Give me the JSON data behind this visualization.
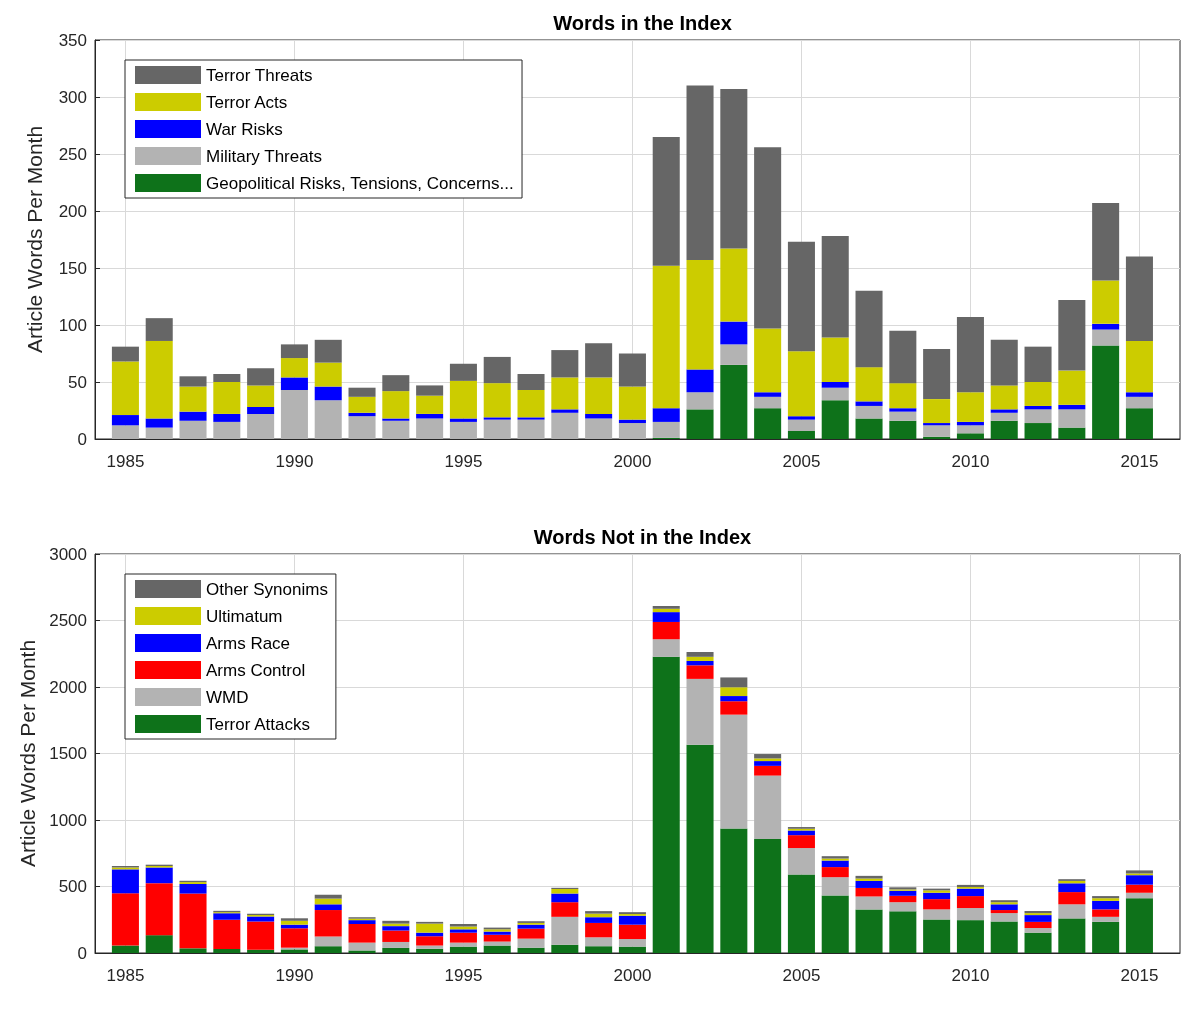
{
  "chart_data": [
    {
      "type": "bar",
      "title": "Words in the Index",
      "ylabel": "Article Words Per Month",
      "stacked": true,
      "grid": true,
      "legend": "top left",
      "x": [
        1985,
        1986,
        1987,
        1988,
        1989,
        1990,
        1991,
        1992,
        1993,
        1994,
        1995,
        1996,
        1997,
        1998,
        1999,
        2000,
        2001,
        2002,
        2003,
        2004,
        2005,
        2006,
        2007,
        2008,
        2009,
        2010,
        2011,
        2012,
        2013,
        2014,
        2015
      ],
      "xlim": [
        1984.1,
        2016.2
      ],
      "xticks": [
        1985,
        1990,
        1995,
        2000,
        2005,
        2010,
        2015
      ],
      "ylim": [
        0,
        350
      ],
      "yticks": [
        0,
        50,
        100,
        150,
        200,
        250,
        300,
        350
      ],
      "series": [
        {
          "name": "Geopolitical Risks, Tensions, Concerns...",
          "color": "#0e721a",
          "values": [
            0,
            0,
            0,
            0,
            0,
            0,
            0,
            0,
            0,
            0,
            0,
            0,
            0,
            0,
            0,
            0,
            1,
            26,
            65,
            27,
            7,
            34,
            18,
            16,
            2,
            5,
            16,
            14,
            10,
            82,
            27
          ]
        },
        {
          "name": "Military Threats",
          "color": "#b3b3b3",
          "values": [
            12,
            10,
            16,
            15,
            22,
            43,
            34,
            20,
            16,
            18,
            15,
            17,
            17,
            23,
            18,
            14,
            14,
            15,
            18,
            10,
            10,
            11,
            11,
            8,
            10,
            7,
            7,
            12,
            16,
            14,
            10
          ]
        },
        {
          "name": "War Risks",
          "color": "#0000ff",
          "values": [
            9,
            8,
            8,
            7,
            6,
            11,
            12,
            3,
            2,
            4,
            3,
            2,
            2,
            3,
            4,
            3,
            12,
            20,
            20,
            4,
            3,
            5,
            4,
            3,
            2,
            3,
            3,
            3,
            4,
            5,
            4
          ]
        },
        {
          "name": "Terror Acts",
          "color": "#cccc00",
          "values": [
            47,
            68,
            22,
            28,
            19,
            17,
            21,
            14,
            24,
            16,
            33,
            30,
            24,
            28,
            32,
            29,
            125,
            96,
            64,
            56,
            57,
            39,
            30,
            22,
            21,
            26,
            21,
            21,
            30,
            38,
            45
          ]
        },
        {
          "name": "Terror Threats",
          "color": "#666666",
          "values": [
            13,
            20,
            9,
            7,
            15,
            12,
            20,
            8,
            14,
            9,
            15,
            23,
            14,
            24,
            30,
            29,
            113,
            153,
            140,
            159,
            96,
            89,
            67,
            46,
            44,
            66,
            40,
            31,
            62,
            68,
            74
          ]
        }
      ]
    },
    {
      "type": "bar",
      "title": "Words Not in the Index",
      "ylabel": "Article Words Per Month",
      "stacked": true,
      "grid": true,
      "legend": "top left",
      "x": [
        1985,
        1986,
        1987,
        1988,
        1989,
        1990,
        1991,
        1992,
        1993,
        1994,
        1995,
        1996,
        1997,
        1998,
        1999,
        2000,
        2001,
        2002,
        2003,
        2004,
        2005,
        2006,
        2007,
        2008,
        2009,
        2010,
        2011,
        2012,
        2013,
        2014,
        2015
      ],
      "xlim": [
        1984.1,
        2016.2
      ],
      "xticks": [
        1985,
        1990,
        1995,
        2000,
        2005,
        2010,
        2015
      ],
      "ylim": [
        0,
        3000
      ],
      "yticks": [
        0,
        500,
        1000,
        1500,
        2000,
        2500,
        3000
      ],
      "series": [
        {
          "name": "Terror Attacks",
          "color": "#0e721a",
          "values": [
            56,
            134,
            35,
            30,
            24,
            27,
            51,
            19,
            38,
            32,
            48,
            56,
            40,
            62,
            51,
            48,
            2227,
            1565,
            937,
            858,
            590,
            433,
            328,
            313,
            252,
            247,
            237,
            153,
            260,
            234,
            412
          ]
        },
        {
          "name": "WMD",
          "color": "#b3b3b3",
          "values": [
            0,
            0,
            0,
            0,
            0,
            13,
            73,
            59,
            45,
            24,
            30,
            30,
            68,
            210,
            67,
            57,
            132,
            496,
            855,
            476,
            199,
            137,
            97,
            69,
            76,
            91,
            63,
            35,
            106,
            38,
            41
          ]
        },
        {
          "name": "Arms Control",
          "color": "#ff0000",
          "values": [
            393,
            391,
            412,
            220,
            213,
            146,
            199,
            140,
            86,
            70,
            75,
            51,
            75,
            110,
            108,
            108,
            130,
            102,
            101,
            73,
            97,
            76,
            64,
            48,
            77,
            90,
            23,
            46,
            92,
            56,
            61
          ]
        },
        {
          "name": "Arms Race",
          "color": "#0000ff",
          "values": [
            180,
            118,
            72,
            49,
            37,
            27,
            43,
            29,
            33,
            27,
            25,
            24,
            30,
            65,
            43,
            67,
            74,
            33,
            39,
            36,
            35,
            49,
            53,
            38,
            48,
            56,
            43,
            51,
            66,
            64,
            71
          ]
        },
        {
          "name": "Ultimatum",
          "color": "#cccc00",
          "values": [
            14,
            11,
            14,
            8,
            11,
            29,
            43,
            11,
            19,
            68,
            21,
            17,
            13,
            34,
            27,
            13,
            25,
            31,
            66,
            20,
            13,
            15,
            18,
            10,
            18,
            12,
            16,
            15,
            18,
            20,
            13
          ]
        },
        {
          "name": "Other Synonims",
          "color": "#666666",
          "values": [
            11,
            10,
            10,
            10,
            11,
            19,
            29,
            11,
            21,
            13,
            19,
            13,
            13,
            9,
            19,
            14,
            21,
            36,
            74,
            33,
            13,
            18,
            20,
            16,
            13,
            16,
            15,
            16,
            13,
            16,
            23
          ]
        }
      ]
    }
  ]
}
